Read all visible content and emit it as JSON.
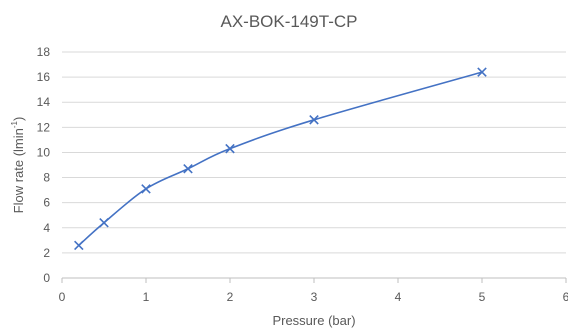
{
  "chart_data": {
    "type": "line",
    "title": "AX-BOK-149T-CP",
    "xlabel": "Pressure (bar)",
    "ylabel_main": "Flow rate (lmin",
    "ylabel_sup": "-1",
    "ylabel_close": ")",
    "xlim": [
      0,
      6
    ],
    "ylim": [
      0,
      18
    ],
    "x_ticks": [
      0,
      1,
      2,
      3,
      4,
      5,
      6
    ],
    "y_ticks": [
      0,
      2,
      4,
      6,
      8,
      10,
      12,
      14,
      16,
      18
    ],
    "grid": "horizontal",
    "legend": "none",
    "series": [
      {
        "x": [
          0.2,
          0.5,
          1,
          1.5,
          2,
          3,
          5
        ],
        "y": [
          2.6,
          4.4,
          7.1,
          8.7,
          10.3,
          12.6,
          16.4
        ],
        "color": "#4472c4",
        "marker": "x"
      }
    ]
  }
}
